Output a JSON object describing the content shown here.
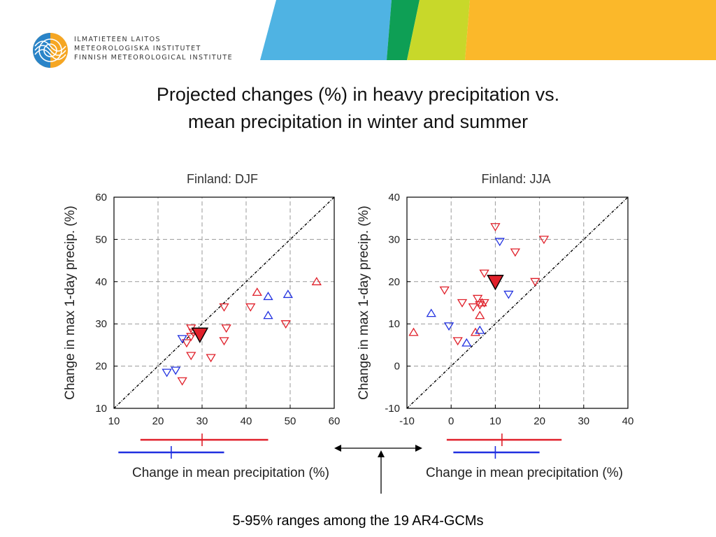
{
  "header": {
    "org_lines": [
      "ILMATIETEEN LAITOS",
      "METEOROLOGISKA INSTITUTET",
      "FINNISH METEOROLOGICAL INSTITUTE"
    ],
    "banner_colors": [
      "#4fb3e3",
      "#0e9f55",
      "#c8d82a",
      "#fbb82a"
    ]
  },
  "title_lines": [
    "Projected changes (%) in heavy precipitation vs.",
    "mean precipitation in winter and summer"
  ],
  "footnote": "5-95% ranges among the 19 AR4-GCMs",
  "chart_data": [
    {
      "type": "scatter",
      "title": "Finland: DJF",
      "xlabel": "Change in mean precipitation (%)",
      "ylabel": "Change in max 1-day precip. (%)",
      "xlim": [
        10,
        60
      ],
      "ylim": [
        10,
        60
      ],
      "xticks": [
        10,
        20,
        30,
        40,
        50,
        60
      ],
      "yticks": [
        10,
        20,
        30,
        40,
        50,
        60
      ],
      "grid": true,
      "diagonal_1to1": true,
      "series": [
        {
          "marker": "triangle-up",
          "color": "#e0202a",
          "points": [
            [
              42.5,
              37.5
            ],
            [
              56,
              40
            ]
          ]
        },
        {
          "marker": "triangle-down",
          "color": "#e0202a",
          "points": [
            [
              27.5,
              29
            ],
            [
              28,
              28
            ],
            [
              27.5,
              27
            ],
            [
              26.5,
              25.5
            ],
            [
              25.5,
              16.5
            ],
            [
              27.5,
              22.5
            ],
            [
              32,
              22
            ],
            [
              35,
              34
            ],
            [
              35.5,
              29
            ],
            [
              35,
              26
            ],
            [
              41,
              34
            ],
            [
              49,
              30
            ]
          ]
        },
        {
          "marker": "triangle-up",
          "color": "#2030e0",
          "points": [
            [
              45,
              36.5
            ],
            [
              49.5,
              37
            ],
            [
              45,
              32
            ]
          ]
        },
        {
          "marker": "triangle-down",
          "color": "#2030e0",
          "points": [
            [
              25.5,
              26.5
            ],
            [
              22,
              18.5
            ],
            [
              24,
              19
            ]
          ]
        },
        {
          "marker": "triangle-down-large",
          "color": "#e0202a",
          "points": [
            [
              29.5,
              27.5
            ]
          ]
        }
      ],
      "ranges": [
        {
          "color": "#e0202a",
          "low": 16,
          "high": 45,
          "mark": 30
        },
        {
          "color": "#2030e0",
          "low": 11,
          "high": 35,
          "mark": 23
        }
      ]
    },
    {
      "type": "scatter",
      "title": "Finland: JJA",
      "xlabel": "Change in mean precipitation (%)",
      "ylabel": "Change in max 1-day precip. (%)",
      "xlim": [
        -10,
        40
      ],
      "ylim": [
        -10,
        40
      ],
      "xticks": [
        -10,
        0,
        10,
        20,
        30,
        40
      ],
      "yticks": [
        -10,
        0,
        10,
        20,
        30,
        40
      ],
      "grid": true,
      "diagonal_1to1": true,
      "series": [
        {
          "marker": "triangle-up",
          "color": "#e0202a",
          "points": [
            [
              -8.5,
              8
            ],
            [
              5.5,
              8
            ],
            [
              6.5,
              12
            ],
            [
              7,
              15
            ]
          ]
        },
        {
          "marker": "triangle-down",
          "color": "#e0202a",
          "points": [
            [
              -1.5,
              18
            ],
            [
              2.5,
              15
            ],
            [
              5,
              14
            ],
            [
              6,
              16
            ],
            [
              6.5,
              14.5
            ],
            [
              7.5,
              15
            ],
            [
              7.5,
              22
            ],
            [
              10,
              33
            ],
            [
              14.5,
              27
            ],
            [
              19,
              20
            ],
            [
              21,
              30
            ],
            [
              1.5,
              6
            ]
          ]
        },
        {
          "marker": "triangle-up",
          "color": "#2030e0",
          "points": [
            [
              -4.5,
              12.5
            ],
            [
              3.5,
              5.5
            ],
            [
              6.5,
              8.5
            ]
          ]
        },
        {
          "marker": "triangle-down",
          "color": "#2030e0",
          "points": [
            [
              -0.5,
              9.5
            ],
            [
              11,
              29.5
            ],
            [
              13,
              17
            ]
          ]
        },
        {
          "marker": "triangle-down-large",
          "color": "#e0202a",
          "points": [
            [
              10,
              20
            ]
          ]
        }
      ],
      "ranges": [
        {
          "color": "#e0202a",
          "low": -1,
          "high": 25,
          "mark": 11.5
        },
        {
          "color": "#2030e0",
          "low": 0.5,
          "high": 20,
          "mark": 10
        }
      ]
    }
  ]
}
